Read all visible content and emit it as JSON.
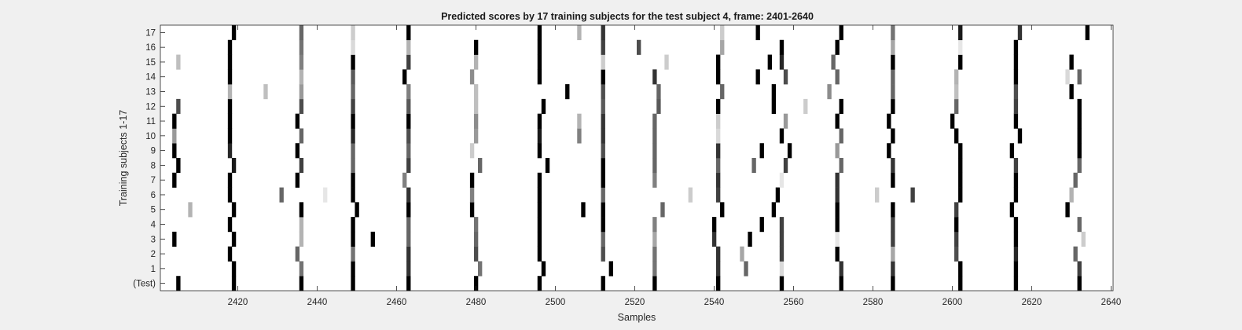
{
  "chart_data": {
    "type": "heatmap",
    "title": "Predicted scores by 17 training subjects for the test subject 4, frame: 2401-2640",
    "xlabel": "Samples",
    "ylabel": "Training subjects 1-17",
    "xlim": [
      2401,
      2640
    ],
    "x_ticks": [
      2420,
      2440,
      2460,
      2480,
      2500,
      2520,
      2540,
      2560,
      2580,
      2600,
      2620,
      2640
    ],
    "row_labels": [
      "(Test)",
      "1",
      "2",
      "3",
      "4",
      "5",
      "6",
      "7",
      "8",
      "9",
      "10",
      "11",
      "12",
      "13",
      "14",
      "15",
      "16",
      "17"
    ],
    "value_range": [
      0,
      1
    ],
    "colormap": "gray-inverted (0 = white, 1 = black)",
    "grid": false,
    "background_color": "#ffffff",
    "rows": [
      {
        "label": "(Test)",
        "marks": [
          [
            2405,
            1
          ],
          [
            2419,
            1
          ],
          [
            2436,
            1
          ],
          [
            2449,
            1
          ],
          [
            2463,
            1
          ],
          [
            2480,
            1
          ],
          [
            2496,
            1
          ],
          [
            2512,
            1
          ],
          [
            2525,
            1
          ],
          [
            2541,
            1
          ],
          [
            2557,
            1
          ],
          [
            2572,
            1
          ],
          [
            2585,
            1
          ],
          [
            2602,
            1
          ],
          [
            2616,
            1
          ],
          [
            2632,
            1
          ]
        ]
      },
      {
        "label": "1",
        "marks": [
          [
            2419,
            1
          ],
          [
            2436,
            0.55
          ],
          [
            2449,
            1
          ],
          [
            2463,
            0.8
          ],
          [
            2481,
            0.55
          ],
          [
            2497,
            1
          ],
          [
            2514,
            1
          ],
          [
            2525,
            0.55
          ],
          [
            2541,
            0.8
          ],
          [
            2548,
            0.6
          ],
          [
            2557,
            0.15
          ],
          [
            2572,
            0.8
          ],
          [
            2585,
            0.8
          ],
          [
            2602,
            1
          ],
          [
            2616,
            1
          ],
          [
            2632,
            0.75
          ]
        ]
      },
      {
        "label": "2",
        "marks": [
          [
            2418,
            1
          ],
          [
            2435,
            0.6
          ],
          [
            2449,
            0.55
          ],
          [
            2463,
            0.8
          ],
          [
            2480,
            0.7
          ],
          [
            2496,
            1
          ],
          [
            2512,
            0.7
          ],
          [
            2525,
            0.55
          ],
          [
            2541,
            0.8
          ],
          [
            2547,
            0.35
          ],
          [
            2557,
            0.75
          ],
          [
            2571,
            1
          ],
          [
            2585,
            0.35
          ],
          [
            2601,
            0.7
          ],
          [
            2616,
            0.85
          ],
          [
            2631,
            0.6
          ]
        ]
      },
      {
        "label": "3",
        "marks": [
          [
            2404,
            1
          ],
          [
            2419,
            1
          ],
          [
            2436,
            0.3
          ],
          [
            2449,
            1
          ],
          [
            2454,
            1
          ],
          [
            2463,
            0.6
          ],
          [
            2480,
            0.6
          ],
          [
            2496,
            1
          ],
          [
            2512,
            0.6
          ],
          [
            2525,
            0.35
          ],
          [
            2540,
            0.8
          ],
          [
            2549,
            1
          ],
          [
            2557,
            0.75
          ],
          [
            2571,
            0.1
          ],
          [
            2585,
            0.75
          ],
          [
            2601,
            0.75
          ],
          [
            2616,
            1
          ],
          [
            2633,
            0.2
          ]
        ]
      },
      {
        "label": "4",
        "marks": [
          [
            2418,
            1
          ],
          [
            2436,
            0.3
          ],
          [
            2449,
            1
          ],
          [
            2463,
            0.6
          ],
          [
            2480,
            0.55
          ],
          [
            2496,
            1
          ],
          [
            2512,
            1
          ],
          [
            2525,
            0.5
          ],
          [
            2540,
            1
          ],
          [
            2552,
            1
          ],
          [
            2557,
            0.75
          ],
          [
            2571,
            1
          ],
          [
            2585,
            0.75
          ],
          [
            2601,
            1
          ],
          [
            2616,
            1
          ],
          [
            2632,
            0.6
          ]
        ]
      },
      {
        "label": "5",
        "marks": [
          [
            2408,
            0.3
          ],
          [
            2419,
            1
          ],
          [
            2436,
            1
          ],
          [
            2450,
            1
          ],
          [
            2463,
            1
          ],
          [
            2479,
            1
          ],
          [
            2496,
            1
          ],
          [
            2507,
            1
          ],
          [
            2512,
            1
          ],
          [
            2527,
            0.6
          ],
          [
            2542,
            1
          ],
          [
            2555,
            1
          ],
          [
            2571,
            1
          ],
          [
            2585,
            1
          ],
          [
            2601,
            0.75
          ],
          [
            2615,
            1
          ],
          [
            2629,
            1
          ]
        ]
      },
      {
        "label": "6",
        "marks": [
          [
            2418,
            1
          ],
          [
            2431,
            0.6
          ],
          [
            2442,
            0.1
          ],
          [
            2449,
            1
          ],
          [
            2463,
            0.8
          ],
          [
            2479,
            0.5
          ],
          [
            2496,
            1
          ],
          [
            2512,
            0.6
          ],
          [
            2534,
            0.2
          ],
          [
            2541,
            0.75
          ],
          [
            2556,
            1
          ],
          [
            2571,
            0.8
          ],
          [
            2581,
            0.2
          ],
          [
            2590,
            0.75
          ],
          [
            2602,
            1
          ],
          [
            2616,
            1
          ],
          [
            2630,
            0.3
          ]
        ]
      },
      {
        "label": "7",
        "marks": [
          [
            2404,
            1
          ],
          [
            2418,
            1
          ],
          [
            2435,
            1
          ],
          [
            2449,
            1
          ],
          [
            2462,
            0.5
          ],
          [
            2479,
            1
          ],
          [
            2496,
            1
          ],
          [
            2512,
            1
          ],
          [
            2525,
            0.5
          ],
          [
            2541,
            0.8
          ],
          [
            2557,
            0.1
          ],
          [
            2571,
            0.8
          ],
          [
            2585,
            1
          ],
          [
            2602,
            1
          ],
          [
            2616,
            1
          ],
          [
            2631,
            0.6
          ]
        ]
      },
      {
        "label": "8",
        "marks": [
          [
            2405,
            1
          ],
          [
            2419,
            0.9
          ],
          [
            2436,
            0.75
          ],
          [
            2449,
            0.6
          ],
          [
            2463,
            0.75
          ],
          [
            2481,
            0.6
          ],
          [
            2498,
            1
          ],
          [
            2512,
            1
          ],
          [
            2525,
            0.6
          ],
          [
            2541,
            0.6
          ],
          [
            2550,
            0.6
          ],
          [
            2558,
            0.75
          ],
          [
            2572,
            0.6
          ],
          [
            2585,
            0.8
          ],
          [
            2602,
            1
          ],
          [
            2616,
            0.75
          ],
          [
            2632,
            0.6
          ]
        ]
      },
      {
        "label": "9",
        "marks": [
          [
            2404,
            1
          ],
          [
            2418,
            0.85
          ],
          [
            2435,
            1
          ],
          [
            2449,
            0.6
          ],
          [
            2463,
            0.6
          ],
          [
            2479,
            0.2
          ],
          [
            2496,
            1
          ],
          [
            2512,
            0.7
          ],
          [
            2525,
            0.6
          ],
          [
            2541,
            0.8
          ],
          [
            2552,
            1
          ],
          [
            2559,
            1
          ],
          [
            2571,
            0.4
          ],
          [
            2584,
            1
          ],
          [
            2602,
            1
          ],
          [
            2615,
            1
          ],
          [
            2632,
            1
          ]
        ]
      },
      {
        "label": "10",
        "marks": [
          [
            2404,
            0.4
          ],
          [
            2418,
            1
          ],
          [
            2436,
            0.6
          ],
          [
            2449,
            0.85
          ],
          [
            2463,
            0.7
          ],
          [
            2480,
            0.4
          ],
          [
            2496,
            0.9
          ],
          [
            2506,
            0.5
          ],
          [
            2512,
            0.8
          ],
          [
            2525,
            0.6
          ],
          [
            2541,
            0.15
          ],
          [
            2557,
            1
          ],
          [
            2572,
            0.6
          ],
          [
            2585,
            1
          ],
          [
            2601,
            1
          ],
          [
            2617,
            1
          ],
          [
            2632,
            1
          ]
        ]
      },
      {
        "label": "11",
        "marks": [
          [
            2404,
            1
          ],
          [
            2418,
            1
          ],
          [
            2435,
            1
          ],
          [
            2449,
            1
          ],
          [
            2463,
            1
          ],
          [
            2480,
            0.45
          ],
          [
            2496,
            1
          ],
          [
            2506,
            0.3
          ],
          [
            2512,
            0.8
          ],
          [
            2525,
            0.6
          ],
          [
            2541,
            0.2
          ],
          [
            2558,
            0.4
          ],
          [
            2571,
            1
          ],
          [
            2584,
            1
          ],
          [
            2600,
            1
          ],
          [
            2616,
            1
          ],
          [
            2632,
            1
          ]
        ]
      },
      {
        "label": "12",
        "marks": [
          [
            2405,
            0.7
          ],
          [
            2418,
            1
          ],
          [
            2436,
            0.7
          ],
          [
            2449,
            0.75
          ],
          [
            2463,
            0.65
          ],
          [
            2480,
            0.25
          ],
          [
            2497,
            1
          ],
          [
            2512,
            0.65
          ],
          [
            2526,
            0.65
          ],
          [
            2541,
            1
          ],
          [
            2555,
            1
          ],
          [
            2563,
            0.2
          ],
          [
            2572,
            1
          ],
          [
            2585,
            1
          ],
          [
            2601,
            0.6
          ],
          [
            2616,
            0.75
          ],
          [
            2632,
            1
          ]
        ]
      },
      {
        "label": "13",
        "marks": [
          [
            2418,
            0.3
          ],
          [
            2427,
            0.25
          ],
          [
            2436,
            0.4
          ],
          [
            2449,
            0.6
          ],
          [
            2463,
            0.5
          ],
          [
            2480,
            0.25
          ],
          [
            2503,
            1
          ],
          [
            2512,
            0.7
          ],
          [
            2526,
            0.6
          ],
          [
            2542,
            0.6
          ],
          [
            2555,
            1
          ],
          [
            2569,
            0.45
          ],
          [
            2585,
            0.6
          ],
          [
            2601,
            0.25
          ],
          [
            2616,
            0.7
          ],
          [
            2630,
            1
          ]
        ]
      },
      {
        "label": "14",
        "marks": [
          [
            2418,
            1
          ],
          [
            2436,
            0.3
          ],
          [
            2449,
            0.65
          ],
          [
            2462,
            1
          ],
          [
            2479,
            0.45
          ],
          [
            2496,
            1
          ],
          [
            2512,
            1
          ],
          [
            2525,
            0.8
          ],
          [
            2541,
            1
          ],
          [
            2551,
            1
          ],
          [
            2558,
            0.7
          ],
          [
            2571,
            0.6
          ],
          [
            2585,
            0.6
          ],
          [
            2601,
            0.3
          ],
          [
            2616,
            1
          ],
          [
            2629,
            0.15
          ],
          [
            2632,
            0.6
          ]
        ]
      },
      {
        "label": "15",
        "marks": [
          [
            2405,
            0.25
          ],
          [
            2418,
            1
          ],
          [
            2436,
            0.5
          ],
          [
            2449,
            1
          ],
          [
            2463,
            0.75
          ],
          [
            2480,
            0.3
          ],
          [
            2496,
            1
          ],
          [
            2512,
            0.2
          ],
          [
            2528,
            0.2
          ],
          [
            2541,
            1
          ],
          [
            2554,
            1
          ],
          [
            2557,
            0.85
          ],
          [
            2570,
            0.6
          ],
          [
            2585,
            1
          ],
          [
            2602,
            1
          ],
          [
            2616,
            1
          ],
          [
            2630,
            1
          ]
        ]
      },
      {
        "label": "16",
        "marks": [
          [
            2418,
            1
          ],
          [
            2436,
            0.55
          ],
          [
            2449,
            0.15
          ],
          [
            2463,
            0.3
          ],
          [
            2480,
            1
          ],
          [
            2496,
            1
          ],
          [
            2512,
            0.75
          ],
          [
            2521,
            0.7
          ],
          [
            2542,
            0.35
          ],
          [
            2557,
            1
          ],
          [
            2571,
            1
          ],
          [
            2585,
            0.35
          ],
          [
            2602,
            0.1
          ],
          [
            2616,
            1
          ]
        ]
      },
      {
        "label": "17",
        "marks": [
          [
            2419,
            1
          ],
          [
            2436,
            0.6
          ],
          [
            2449,
            0.2
          ],
          [
            2463,
            1
          ],
          [
            2496,
            1
          ],
          [
            2506,
            0.3
          ],
          [
            2512,
            0.8
          ],
          [
            2542,
            0.2
          ],
          [
            2551,
            1
          ],
          [
            2572,
            1
          ],
          [
            2585,
            0.55
          ],
          [
            2602,
            0.9
          ],
          [
            2617,
            0.8
          ],
          [
            2634,
            1
          ]
        ]
      }
    ]
  }
}
